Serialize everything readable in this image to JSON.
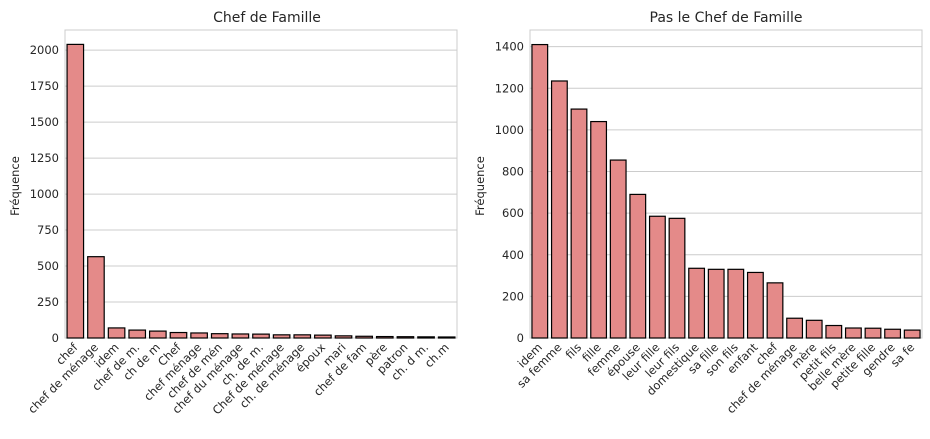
{
  "chart_data": [
    {
      "type": "bar",
      "title": "Chef de Famille",
      "ylabel": "Fréquence",
      "xlabel": "",
      "ylim": [
        0,
        2140
      ],
      "yticks": [
        0,
        250,
        500,
        750,
        1000,
        1250,
        1500,
        1750,
        2000
      ],
      "grid": true,
      "color": "#e48a89",
      "categories": [
        "chef",
        "chef de ménage",
        "idem",
        "chef de m.",
        "ch de m",
        "Chef",
        "chef ménage",
        "chef de mén",
        "chef du ménage",
        "ch. de m.",
        "Chef de ménage",
        "ch. de ménage",
        "époux",
        "mari",
        "chef de fam",
        "père",
        "patron",
        "ch. d m.",
        "ch.m"
      ],
      "values": [
        2040,
        565,
        70,
        55,
        48,
        38,
        35,
        30,
        28,
        27,
        22,
        22,
        20,
        15,
        12,
        10,
        9,
        8,
        7
      ]
    },
    {
      "type": "bar",
      "title": "Pas le Chef de Famille",
      "ylabel": "Fréquence",
      "xlabel": "",
      "ylim": [
        0,
        1480
      ],
      "yticks": [
        0,
        200,
        400,
        600,
        800,
        1000,
        1200,
        1400
      ],
      "grid": true,
      "color": "#e48a89",
      "categories": [
        "idem",
        "sa femme",
        "fils",
        "fille",
        "femme",
        "épouse",
        "leur fille",
        "leur fils",
        "domestique",
        "sa fille",
        "son fils",
        "enfant",
        "chef",
        "chef de ménage",
        "mère",
        "petit fils",
        "belle mère",
        "petite fille",
        "gendre",
        "sa fe"
      ],
      "values": [
        1410,
        1235,
        1100,
        1040,
        855,
        690,
        585,
        575,
        335,
        330,
        330,
        315,
        265,
        95,
        85,
        60,
        48,
        47,
        42,
        38
      ]
    }
  ]
}
